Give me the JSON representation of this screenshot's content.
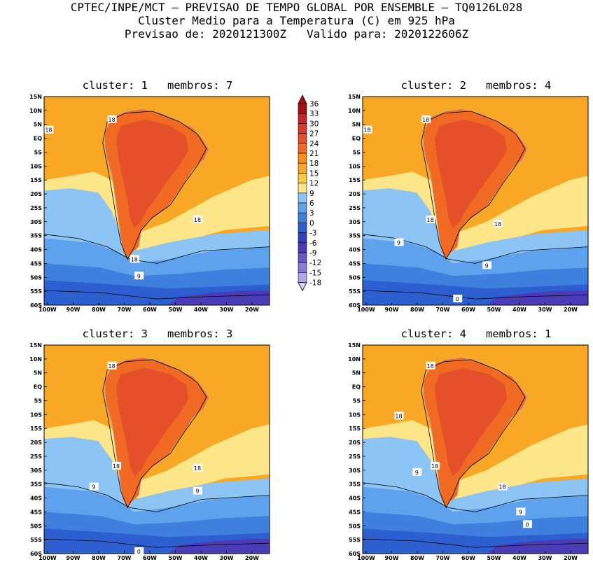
{
  "header": {
    "line1": "CPTEC/INPE/MCT – PREVISAO DE TEMPO GLOBAL POR ENSEMBLE – TQ0126L028",
    "line2": "Cluster Medio para a Temperatura (C) em 925 hPa",
    "line3": "Previsao de: 2020121300Z   Valido para: 2020122606Z"
  },
  "panels": [
    {
      "title": "cluster: 1   membros: 7",
      "contour_labels": [
        "18",
        "18",
        "18",
        "18",
        "9"
      ]
    },
    {
      "title": "cluster: 2   membros: 4",
      "contour_labels": [
        "18",
        "18",
        "18",
        "18",
        "9",
        "9",
        "0"
      ]
    },
    {
      "title": "cluster: 3   membros: 3",
      "contour_labels": [
        "18",
        "18",
        "18",
        "9",
        "9",
        "0"
      ]
    },
    {
      "title": "cluster: 4   membros: 1",
      "contour_labels": [
        "18",
        "18",
        "18",
        "18",
        "9",
        "9",
        "0"
      ]
    }
  ],
  "axes": {
    "lat_labels": [
      "15N",
      "10N",
      "5N",
      "EQ",
      "5S",
      "10S",
      "15S",
      "20S",
      "25S",
      "30S",
      "35S",
      "40S",
      "45S",
      "50S",
      "55S",
      "60S"
    ],
    "lon_labels": [
      "100W",
      "90W",
      "80W",
      "70W",
      "60W",
      "50W",
      "40W",
      "30W",
      "20W"
    ]
  },
  "colorbar": {
    "labels": [
      "36",
      "33",
      "30",
      "27",
      "24",
      "21",
      "18",
      "15",
      "12",
      "9",
      "6",
      "3",
      "0",
      "-3",
      "-6",
      "-9",
      "-12",
      "-15",
      "-18"
    ],
    "colors": [
      "#a50f15",
      "#c8252a",
      "#d93b2a",
      "#e5502b",
      "#f06a24",
      "#f98c1d",
      "#f9a825",
      "#fac843",
      "#fde58a",
      "#8cc4f5",
      "#5ea1ec",
      "#3f7fdd",
      "#2e5fd0",
      "#3342b9",
      "#4a3cb6",
      "#6a55c8",
      "#8c78d8",
      "#b3a5e6",
      "#d7cdf3"
    ]
  },
  "map_colors": {
    "ocean_warm": "#f9a825",
    "land_hot": "#f06a24",
    "land_very_hot": "#e5502b",
    "subtropic": "#fde58a",
    "cold_1": "#8cc4f5",
    "cold_2": "#5ea1ec",
    "cold_3": "#3f7fdd",
    "cold_4": "#2e5fd0",
    "cold_5": "#4a3cb6"
  }
}
